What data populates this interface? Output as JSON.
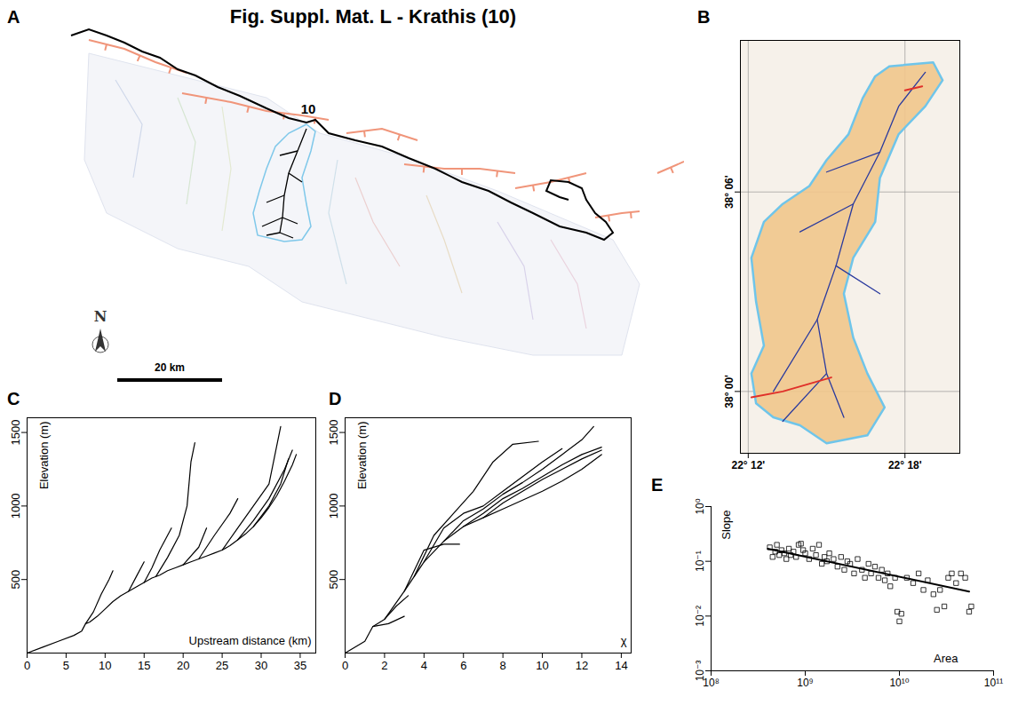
{
  "title": "Fig. Suppl. Mat. L - Krathis (10)",
  "chart_data": [
    {
      "letter": "A",
      "type": "map",
      "label": "10",
      "north_label": "N",
      "scale_bar": "20 km"
    },
    {
      "letter": "B",
      "type": "map",
      "xlim": [
        22.195,
        22.335
      ],
      "ylim": [
        37.969,
        38.176
      ],
      "xticks": [
        {
          "value": 22.2,
          "label": "22° 12'"
        },
        {
          "value": 22.3,
          "label": "22° 18'"
        }
      ],
      "yticks": [
        {
          "value": 38.0,
          "label": "38° 00'"
        },
        {
          "value": 38.1,
          "label": "38° 06'"
        }
      ],
      "grid": true,
      "basin_outline": [
        [
          22.29,
          38.163
        ],
        [
          22.318,
          38.165
        ],
        [
          22.324,
          38.156
        ],
        [
          22.313,
          38.143
        ],
        [
          22.296,
          38.129
        ],
        [
          22.284,
          38.107
        ],
        [
          22.281,
          38.085
        ],
        [
          22.267,
          38.067
        ],
        [
          22.261,
          38.049
        ],
        [
          22.267,
          38.027
        ],
        [
          22.276,
          38.009
        ],
        [
          22.287,
          37.992
        ],
        [
          22.276,
          37.978
        ],
        [
          22.25,
          37.974
        ],
        [
          22.233,
          37.983
        ],
        [
          22.216,
          37.987
        ],
        [
          22.205,
          37.994
        ],
        [
          22.202,
          38.009
        ],
        [
          22.21,
          38.023
        ],
        [
          22.205,
          38.045
        ],
        [
          22.202,
          38.067
        ],
        [
          22.21,
          38.085
        ],
        [
          22.222,
          38.094
        ],
        [
          22.239,
          38.103
        ],
        [
          22.25,
          38.116
        ],
        [
          22.264,
          38.129
        ],
        [
          22.273,
          38.147
        ],
        [
          22.281,
          38.158
        ],
        [
          22.29,
          38.163
        ]
      ],
      "streams": [
        [
          [
            22.313,
            38.16
          ],
          [
            22.296,
            38.143
          ],
          [
            22.284,
            38.12
          ],
          [
            22.267,
            38.094
          ],
          [
            22.256,
            38.063
          ],
          [
            22.244,
            38.036
          ],
          [
            22.25,
            38.009
          ],
          [
            22.261,
            37.987
          ]
        ],
        [
          [
            22.267,
            38.094
          ],
          [
            22.233,
            38.08
          ]
        ],
        [
          [
            22.244,
            38.036
          ],
          [
            22.216,
            38.0
          ]
        ],
        [
          [
            22.256,
            38.063
          ],
          [
            22.284,
            38.049
          ]
        ],
        [
          [
            22.284,
            38.12
          ],
          [
            22.25,
            38.11
          ]
        ],
        [
          [
            22.25,
            38.009
          ],
          [
            22.222,
            37.985
          ]
        ]
      ],
      "faults": [
        [
          [
            22.202,
            37.997
          ],
          [
            22.222,
            38.0
          ],
          [
            22.253,
            38.007
          ]
        ],
        [
          [
            22.3,
            38.151
          ],
          [
            22.311,
            38.153
          ]
        ]
      ]
    },
    {
      "letter": "C",
      "type": "line",
      "x_label": "Upstream distance (km)",
      "y_label": "Elevation (m)",
      "xlim": [
        0,
        37
      ],
      "ylim": [
        0,
        1600
      ],
      "xticks": [
        0,
        5,
        10,
        15,
        20,
        25,
        30,
        35
      ],
      "yticks": [
        500,
        1000,
        1500
      ],
      "color": "#000000",
      "series": [
        {
          "x": [
            0,
            2,
            4,
            6,
            7,
            7.5,
            8,
            9,
            10,
            11,
            12,
            13,
            14,
            15,
            16,
            17,
            18,
            19,
            20,
            21,
            22,
            23,
            24,
            25,
            26,
            27,
            28,
            29,
            30,
            31,
            32,
            33,
            34,
            34.5
          ],
          "values": [
            0,
            40,
            80,
            120,
            150,
            200,
            210,
            250,
            300,
            350,
            390,
            420,
            450,
            480,
            510,
            530,
            560,
            580,
            600,
            620,
            640,
            660,
            680,
            700,
            730,
            770,
            810,
            860,
            920,
            990,
            1070,
            1170,
            1280,
            1350
          ]
        },
        {
          "x": [
            7.5,
            8.5,
            9.5,
            10.5,
            11
          ],
          "values": [
            200,
            280,
            400,
            500,
            560
          ]
        },
        {
          "x": [
            13,
            14,
            15
          ],
          "values": [
            420,
            520,
            620
          ]
        },
        {
          "x": [
            15,
            16,
            17,
            18,
            18.5
          ],
          "values": [
            480,
            580,
            700,
            800,
            850
          ]
        },
        {
          "x": [
            16.5,
            18,
            19.5,
            20.5,
            21,
            21.5
          ],
          "values": [
            520,
            650,
            800,
            1000,
            1300,
            1430
          ]
        },
        {
          "x": [
            20,
            22,
            23
          ],
          "values": [
            600,
            720,
            850
          ]
        },
        {
          "x": [
            22,
            24,
            26,
            27
          ],
          "values": [
            640,
            800,
            950,
            1050
          ]
        },
        {
          "x": [
            25,
            27,
            29,
            31,
            32.5
          ],
          "values": [
            700,
            850,
            1000,
            1150,
            1540
          ]
        },
        {
          "x": [
            27,
            29,
            31,
            33,
            34
          ],
          "values": [
            770,
            900,
            1050,
            1250,
            1380
          ]
        },
        {
          "x": [
            29,
            31,
            32.5,
            33.5
          ],
          "values": [
            860,
            1000,
            1150,
            1320
          ]
        }
      ]
    },
    {
      "letter": "D",
      "type": "line",
      "x_label": "χ",
      "y_label": "Elevation (m)",
      "xlim": [
        0,
        14.5
      ],
      "ylim": [
        0,
        1600
      ],
      "xticks": [
        0,
        2,
        4,
        6,
        8,
        10,
        12,
        14
      ],
      "yticks": [
        500,
        1000,
        1500
      ],
      "color": "#000000",
      "series": [
        {
          "x": [
            0,
            1,
            1.4,
            2,
            3,
            4,
            5,
            6,
            7,
            8,
            9,
            10,
            11,
            12,
            13
          ],
          "values": [
            0,
            80,
            180,
            230,
            420,
            620,
            760,
            860,
            920,
            980,
            1040,
            1100,
            1170,
            1250,
            1350
          ]
        },
        {
          "x": [
            1.4,
            2.2,
            3
          ],
          "values": [
            180,
            200,
            250
          ]
        },
        {
          "x": [
            2,
            2.6,
            3.2
          ],
          "values": [
            230,
            320,
            390
          ]
        },
        {
          "x": [
            3,
            4,
            5,
            5.8
          ],
          "values": [
            420,
            700,
            740,
            740
          ]
        },
        {
          "x": [
            3.5,
            4.5,
            5.5,
            6.5,
            7.5,
            8.5,
            9.8
          ],
          "values": [
            520,
            800,
            950,
            1100,
            1300,
            1420,
            1440
          ]
        },
        {
          "x": [
            4,
            5,
            6,
            7,
            8,
            9,
            10,
            11
          ],
          "values": [
            620,
            850,
            950,
            1000,
            1100,
            1200,
            1300,
            1390
          ]
        },
        {
          "x": [
            5,
            6,
            7,
            8,
            9,
            10,
            11,
            12,
            12.6
          ],
          "values": [
            760,
            900,
            980,
            1080,
            1160,
            1250,
            1350,
            1450,
            1540
          ]
        },
        {
          "x": [
            6,
            7,
            8,
            9,
            10,
            11,
            12,
            13
          ],
          "values": [
            860,
            950,
            1050,
            1120,
            1200,
            1280,
            1350,
            1400
          ]
        },
        {
          "x": [
            7,
            8,
            9,
            10,
            11,
            12,
            13
          ],
          "values": [
            920,
            1020,
            1100,
            1180,
            1250,
            1320,
            1380
          ]
        }
      ]
    },
    {
      "letter": "E",
      "type": "scatter",
      "x_label": "Area",
      "y_label": "Slope",
      "log": true,
      "xlim": [
        100000000.0,
        100000000000.0
      ],
      "ylim": [
        0.001,
        1
      ],
      "xticks": [
        {
          "value": 100000000.0,
          "label": "10⁸"
        },
        {
          "value": 1000000000.0,
          "label": "10⁹"
        },
        {
          "value": 10000000000.0,
          "label": "10¹⁰"
        },
        {
          "value": 100000000000.0,
          "label": "10¹¹"
        }
      ],
      "yticks": [
        {
          "value": 0.001,
          "label": "10⁻³"
        },
        {
          "value": 0.01,
          "label": "10⁻²"
        },
        {
          "value": 0.1,
          "label": "10⁻¹"
        },
        {
          "value": 1,
          "label": "10⁰"
        }
      ],
      "color": "#000000",
      "marker": "square",
      "x": [
        420000000.0,
        450000000.0,
        480000000.0,
        500000000.0,
        530000000.0,
        560000000.0,
        600000000.0,
        630000000.0,
        670000000.0,
        700000000.0,
        750000000.0,
        800000000.0,
        850000000.0,
        900000000.0,
        950000000.0,
        1000000000.0,
        1100000000.0,
        1200000000.0,
        1300000000.0,
        1400000000.0,
        1500000000.0,
        1600000000.0,
        1700000000.0,
        1800000000.0,
        2000000000.0,
        2200000000.0,
        2400000000.0,
        2600000000.0,
        2800000000.0,
        3000000000.0,
        3300000000.0,
        3600000000.0,
        4000000000.0,
        4300000000.0,
        4700000000.0,
        5000000000.0,
        5500000000.0,
        6000000000.0,
        6500000000.0,
        7000000000.0,
        7500000000.0,
        8000000000.0,
        9000000000.0,
        9500000000.0,
        10000000000.0,
        10500000000.0,
        12000000000.0,
        14000000000.0,
        16000000000.0,
        18000000000.0,
        20000000000.0,
        23000000000.0,
        25000000000.0,
        27000000000.0,
        30000000000.0,
        33000000000.0,
        36000000000.0,
        40000000000.0,
        45000000000.0,
        50000000000.0,
        55000000000.0,
        58000000000.0
      ],
      "values": [
        0.18,
        0.12,
        0.15,
        0.2,
        0.13,
        0.16,
        0.14,
        0.11,
        0.17,
        0.13,
        0.15,
        0.12,
        0.2,
        0.21,
        0.16,
        0.14,
        0.11,
        0.17,
        0.13,
        0.2,
        0.09,
        0.12,
        0.1,
        0.14,
        0.11,
        0.08,
        0.12,
        0.07,
        0.1,
        0.09,
        0.06,
        0.11,
        0.07,
        0.05,
        0.09,
        0.06,
        0.08,
        0.05,
        0.07,
        0.045,
        0.06,
        0.035,
        0.05,
        0.012,
        0.008,
        0.011,
        0.05,
        0.04,
        0.06,
        0.03,
        0.045,
        0.025,
        0.013,
        0.03,
        0.015,
        0.05,
        0.06,
        0.04,
        0.06,
        0.05,
        0.012,
        0.015
      ],
      "fit_line": {
        "x": [
          400000000.0,
          55000000000.0
        ],
        "values": [
          0.17,
          0.028
        ]
      }
    }
  ]
}
